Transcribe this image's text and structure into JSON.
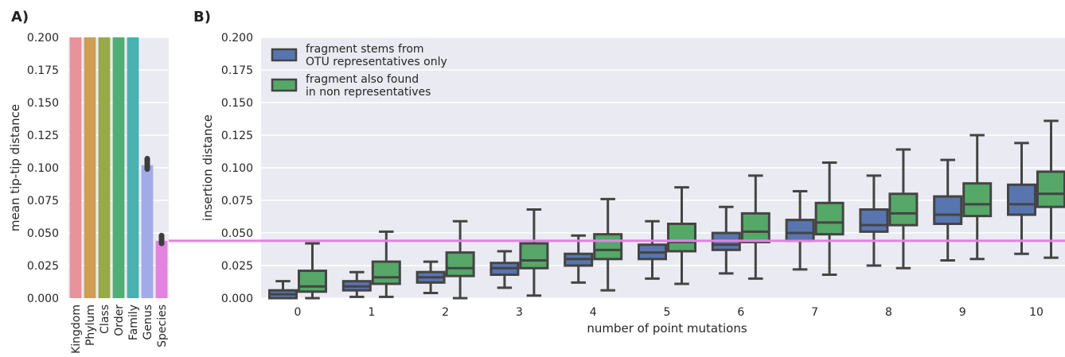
{
  "chart_data": [
    {
      "panel": "A)",
      "type": "bar",
      "ylabel": "mean tip-tip distance",
      "ylim": [
        0,
        0.2
      ],
      "yticks": [
        "0.000",
        "0.025",
        "0.050",
        "0.075",
        "0.100",
        "0.125",
        "0.150",
        "0.175",
        "0.200"
      ],
      "categories": [
        "Kingdom",
        "Phylum",
        "Class",
        "Order",
        "Family",
        "Genus",
        "Species"
      ],
      "values": [
        0.2,
        0.2,
        0.2,
        0.2,
        0.2,
        0.102,
        0.044
      ],
      "error_low": [
        null,
        null,
        null,
        null,
        null,
        0.099,
        0.042
      ],
      "error_high": [
        null,
        null,
        null,
        null,
        null,
        0.107,
        0.048
      ],
      "colors": [
        "#e8929b",
        "#cf9d55",
        "#98a94a",
        "#52ad74",
        "#49b2b0",
        "#a2abe7",
        "#e482e0"
      ],
      "grid": true
    },
    {
      "panel": "B)",
      "type": "box",
      "xlabel": "number of point mutations",
      "ylabel": "insertion distance",
      "ylim": [
        0,
        0.2
      ],
      "yticks": [
        "0.000",
        "0.025",
        "0.050",
        "0.075",
        "0.100",
        "0.125",
        "0.150",
        "0.175",
        "0.200"
      ],
      "categories": [
        "0",
        "1",
        "2",
        "3",
        "4",
        "5",
        "6",
        "7",
        "8",
        "9",
        "10"
      ],
      "reference_line": 0.044,
      "reference_color": "#e482e0",
      "legend_position": "top-left",
      "grid": true,
      "series": [
        {
          "name_lines": [
            "fragment stems from",
            "OTU representatives only"
          ],
          "color": "#5875b0",
          "boxes": [
            {
              "min": 0.0,
              "q1": 0.0,
              "median": 0.003,
              "q3": 0.006,
              "max": 0.013
            },
            {
              "min": 0.001,
              "q1": 0.006,
              "median": 0.009,
              "q3": 0.013,
              "max": 0.02
            },
            {
              "min": 0.004,
              "q1": 0.012,
              "median": 0.016,
              "q3": 0.02,
              "max": 0.028
            },
            {
              "min": 0.008,
              "q1": 0.018,
              "median": 0.023,
              "q3": 0.027,
              "max": 0.036
            },
            {
              "min": 0.012,
              "q1": 0.025,
              "median": 0.03,
              "q3": 0.034,
              "max": 0.048
            },
            {
              "min": 0.015,
              "q1": 0.03,
              "median": 0.035,
              "q3": 0.041,
              "max": 0.059
            },
            {
              "min": 0.019,
              "q1": 0.037,
              "median": 0.041,
              "q3": 0.05,
              "max": 0.07
            },
            {
              "min": 0.022,
              "q1": 0.044,
              "median": 0.05,
              "q3": 0.06,
              "max": 0.082
            },
            {
              "min": 0.025,
              "q1": 0.051,
              "median": 0.056,
              "q3": 0.068,
              "max": 0.094
            },
            {
              "min": 0.029,
              "q1": 0.057,
              "median": 0.064,
              "q3": 0.078,
              "max": 0.106
            },
            {
              "min": 0.034,
              "q1": 0.064,
              "median": 0.072,
              "q3": 0.087,
              "max": 0.119
            }
          ]
        },
        {
          "name_lines": [
            "fragment also found",
            "in non representatives"
          ],
          "color": "#55a868",
          "boxes": [
            {
              "min": 0.0,
              "q1": 0.005,
              "median": 0.009,
              "q3": 0.021,
              "max": 0.042
            },
            {
              "min": 0.001,
              "q1": 0.011,
              "median": 0.016,
              "q3": 0.028,
              "max": 0.051
            },
            {
              "min": 0.0,
              "q1": 0.017,
              "median": 0.023,
              "q3": 0.035,
              "max": 0.059
            },
            {
              "min": 0.002,
              "q1": 0.023,
              "median": 0.029,
              "q3": 0.042,
              "max": 0.068
            },
            {
              "min": 0.006,
              "q1": 0.03,
              "median": 0.037,
              "q3": 0.049,
              "max": 0.076
            },
            {
              "min": 0.011,
              "q1": 0.036,
              "median": 0.043,
              "q3": 0.057,
              "max": 0.085
            },
            {
              "min": 0.015,
              "q1": 0.043,
              "median": 0.051,
              "q3": 0.065,
              "max": 0.094
            },
            {
              "min": 0.018,
              "q1": 0.049,
              "median": 0.058,
              "q3": 0.073,
              "max": 0.104
            },
            {
              "min": 0.023,
              "q1": 0.056,
              "median": 0.065,
              "q3": 0.08,
              "max": 0.114
            },
            {
              "min": 0.03,
              "q1": 0.063,
              "median": 0.072,
              "q3": 0.088,
              "max": 0.125
            },
            {
              "min": 0.031,
              "q1": 0.07,
              "median": 0.08,
              "q3": 0.097,
              "max": 0.136
            }
          ]
        }
      ]
    }
  ]
}
